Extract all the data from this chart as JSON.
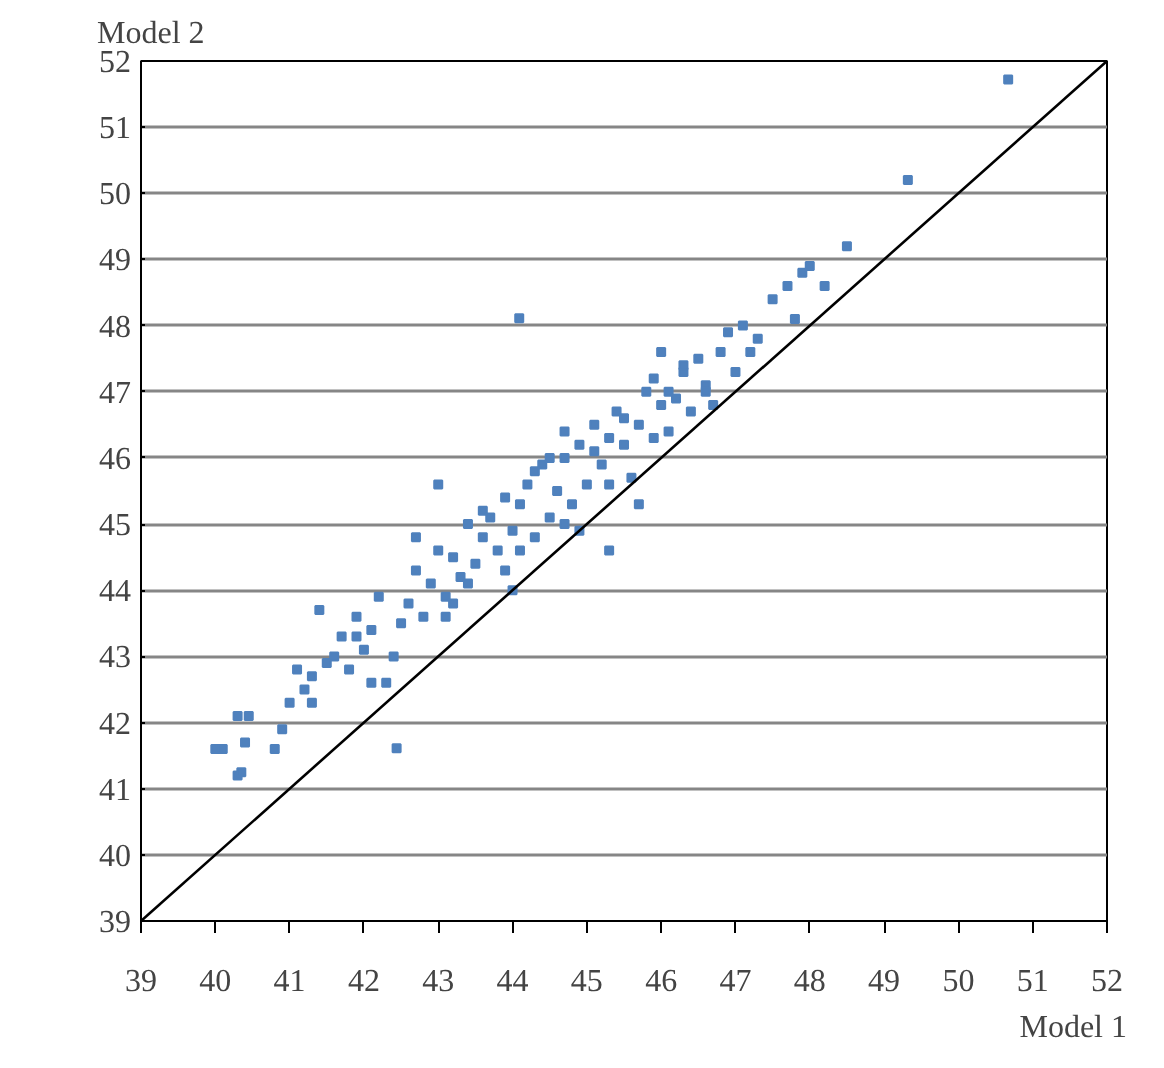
{
  "chart_data": {
    "type": "scatter",
    "xlabel": "Model 1",
    "ylabel": "Model 2",
    "xlim": [
      39,
      52
    ],
    "ylim": [
      39,
      52
    ],
    "xticks": [
      39,
      40,
      41,
      42,
      43,
      44,
      45,
      46,
      47,
      48,
      49,
      50,
      51,
      52
    ],
    "yticks": [
      39,
      40,
      41,
      42,
      43,
      44,
      45,
      46,
      47,
      48,
      49,
      50,
      51,
      52
    ],
    "grid": "y",
    "series": [
      {
        "marker": "square",
        "color": "#4f81bd",
        "x": [
          40.0,
          40.1,
          40.3,
          40.35,
          40.4,
          40.3,
          40.45,
          40.8,
          40.9,
          41.0,
          41.1,
          41.2,
          41.3,
          41.4,
          41.5,
          41.3,
          41.6,
          41.7,
          41.8,
          41.9,
          42.0,
          42.1,
          42.2,
          42.3,
          42.4,
          42.5,
          42.44,
          41.9,
          42.1,
          42.6,
          42.7,
          42.8,
          42.9,
          43.0,
          43.1,
          43.2,
          43.3,
          43.4,
          43.5,
          43.6,
          43.0,
          43.2,
          43.4,
          43.6,
          43.8,
          43.9,
          44.0,
          44.1,
          44.2,
          44.3,
          44.4,
          44.09,
          43.7,
          43.9,
          44.1,
          44.3,
          44.5,
          44.6,
          44.7,
          44.8,
          44.9,
          45.0,
          45.1,
          45.2,
          45.3,
          44.5,
          44.7,
          44.9,
          45.1,
          45.3,
          45.4,
          45.5,
          45.6,
          45.7,
          45.8,
          45.9,
          46.0,
          45.5,
          45.7,
          45.9,
          46.1,
          46.2,
          46.3,
          46.4,
          46.5,
          46.6,
          46.7,
          46.0,
          46.3,
          46.6,
          46.8,
          46.9,
          47.0,
          47.1,
          47.2,
          47.3,
          47.5,
          47.7,
          47.8,
          47.9,
          48.0,
          48.2,
          48.5,
          49.32,
          50.67,
          44.0,
          44.7,
          45.3,
          46.1,
          43.1,
          42.7
        ],
        "values": [
          41.6,
          41.6,
          41.2,
          41.25,
          41.7,
          42.1,
          42.1,
          41.6,
          41.9,
          42.3,
          42.8,
          42.5,
          42.7,
          43.7,
          42.9,
          42.3,
          43.0,
          43.3,
          42.8,
          43.6,
          43.1,
          43.4,
          43.9,
          42.6,
          43.0,
          43.5,
          41.61,
          43.3,
          42.6,
          43.8,
          44.3,
          43.6,
          44.1,
          44.6,
          43.9,
          44.5,
          44.2,
          45.0,
          44.4,
          44.8,
          45.6,
          43.8,
          44.1,
          45.2,
          44.6,
          45.4,
          44.9,
          45.3,
          45.6,
          44.8,
          45.9,
          48.11,
          45.1,
          44.3,
          44.6,
          45.8,
          45.1,
          45.5,
          46.0,
          45.3,
          46.2,
          45.6,
          46.5,
          45.9,
          46.3,
          46.0,
          46.4,
          44.9,
          46.1,
          45.6,
          46.7,
          46.2,
          45.7,
          46.5,
          47.0,
          46.3,
          46.8,
          46.6,
          45.3,
          47.2,
          46.4,
          46.9,
          47.3,
          46.7,
          47.5,
          47.1,
          46.8,
          47.6,
          47.4,
          47.0,
          47.6,
          47.9,
          47.3,
          48.0,
          47.6,
          47.8,
          48.4,
          48.6,
          48.1,
          48.8,
          48.9,
          48.6,
          49.2,
          50.2,
          51.72,
          44.0,
          45.0,
          44.6,
          47.0,
          43.6,
          44.8
        ]
      },
      {
        "type": "line",
        "color": "#000000",
        "x": [
          39,
          52
        ],
        "values": [
          39,
          52
        ]
      }
    ]
  }
}
